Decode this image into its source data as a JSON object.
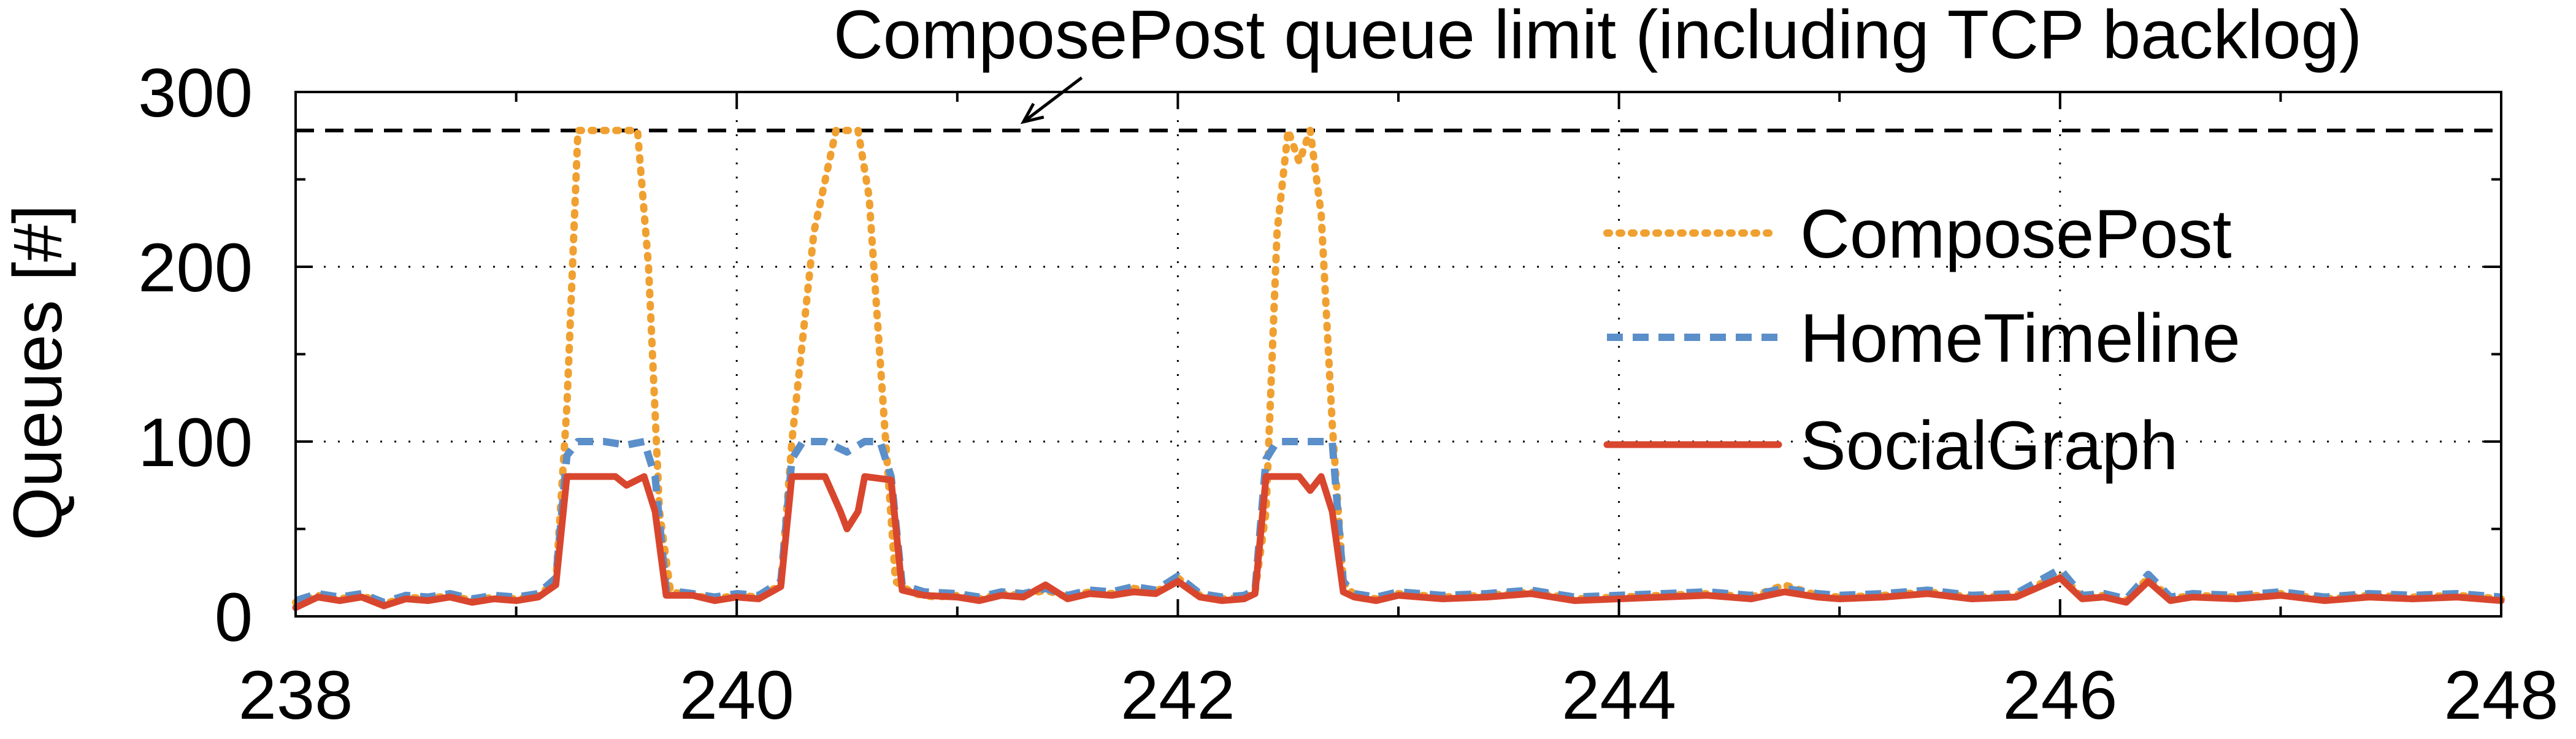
{
  "chart_data": {
    "type": "line",
    "title": "",
    "xlabel": "",
    "ylabel": "Queues [#]",
    "xlim": [
      238,
      248
    ],
    "ylim": [
      0,
      300
    ],
    "x_ticks": [
      238,
      240,
      242,
      244,
      246,
      248
    ],
    "x_tick_labels": [
      "238",
      "240",
      "242",
      "244",
      "246",
      "248"
    ],
    "y_ticks": [
      0,
      100,
      200,
      300
    ],
    "y_tick_labels": [
      "0",
      "100",
      "200",
      "300"
    ],
    "grid": true,
    "grid_style": "dotted",
    "legend_position": "right",
    "reference_line": {
      "value": 278,
      "style": "dashed",
      "color": "#000000"
    },
    "annotation": {
      "text": "ComposePost queue limit (including TCP backlog)",
      "points_to": {
        "x": 241.3,
        "y": 278
      }
    },
    "series": [
      {
        "name": "ComposePost",
        "style": "dotted",
        "color": "#F0A030",
        "points": [
          [
            238,
            8
          ],
          [
            238.1,
            12
          ],
          [
            238.2,
            10
          ],
          [
            238.3,
            12
          ],
          [
            238.4,
            7
          ],
          [
            238.5,
            11
          ],
          [
            238.6,
            10
          ],
          [
            238.7,
            12
          ],
          [
            238.8,
            9
          ],
          [
            238.9,
            11
          ],
          [
            239.0,
            10
          ],
          [
            239.1,
            12
          ],
          [
            239.18,
            20
          ],
          [
            239.23,
            120
          ],
          [
            239.28,
            278
          ],
          [
            239.45,
            278
          ],
          [
            239.55,
            278
          ],
          [
            239.6,
            200
          ],
          [
            239.65,
            60
          ],
          [
            239.7,
            14
          ],
          [
            239.8,
            12
          ],
          [
            239.9,
            10
          ],
          [
            240.0,
            12
          ],
          [
            240.1,
            11
          ],
          [
            240.2,
            18
          ],
          [
            240.25,
            100
          ],
          [
            240.35,
            220
          ],
          [
            240.45,
            278
          ],
          [
            240.55,
            278
          ],
          [
            240.6,
            240
          ],
          [
            240.67,
            110
          ],
          [
            240.72,
            20
          ],
          [
            240.8,
            13
          ],
          [
            240.9,
            11
          ],
          [
            241.0,
            12
          ],
          [
            241.1,
            10
          ],
          [
            241.2,
            13
          ],
          [
            241.3,
            12
          ],
          [
            241.4,
            15
          ],
          [
            241.5,
            11
          ],
          [
            241.6,
            14
          ],
          [
            241.7,
            13
          ],
          [
            241.8,
            16
          ],
          [
            241.9,
            14
          ],
          [
            242.0,
            22
          ],
          [
            242.1,
            12
          ],
          [
            242.2,
            10
          ],
          [
            242.3,
            11
          ],
          [
            242.35,
            14
          ],
          [
            242.4,
            60
          ],
          [
            242.45,
            220
          ],
          [
            242.5,
            278
          ],
          [
            242.55,
            260
          ],
          [
            242.6,
            278
          ],
          [
            242.65,
            230
          ],
          [
            242.7,
            110
          ],
          [
            242.75,
            20
          ],
          [
            242.8,
            12
          ],
          [
            242.9,
            10
          ],
          [
            243.0,
            13
          ],
          [
            243.2,
            11
          ],
          [
            243.4,
            12
          ],
          [
            243.6,
            14
          ],
          [
            243.8,
            10
          ],
          [
            244.0,
            11
          ],
          [
            244.2,
            12
          ],
          [
            244.4,
            13
          ],
          [
            244.6,
            11
          ],
          [
            244.75,
            18
          ],
          [
            244.9,
            12
          ],
          [
            245.0,
            11
          ],
          [
            245.2,
            12
          ],
          [
            245.4,
            14
          ],
          [
            245.6,
            11
          ],
          [
            245.8,
            12
          ],
          [
            246.0,
            24
          ],
          [
            246.1,
            11
          ],
          [
            246.2,
            12
          ],
          [
            246.3,
            9
          ],
          [
            246.4,
            22
          ],
          [
            246.5,
            10
          ],
          [
            246.6,
            12
          ],
          [
            246.8,
            11
          ],
          [
            247.0,
            13
          ],
          [
            247.2,
            10
          ],
          [
            247.4,
            12
          ],
          [
            247.6,
            11
          ],
          [
            247.8,
            12
          ],
          [
            248.0,
            10
          ]
        ]
      },
      {
        "name": "HomeTimeline",
        "style": "dashed",
        "color": "#5B8FC9",
        "points": [
          [
            238,
            9
          ],
          [
            238.1,
            13
          ],
          [
            238.2,
            11
          ],
          [
            238.3,
            13
          ],
          [
            238.4,
            8
          ],
          [
            238.5,
            12
          ],
          [
            238.6,
            11
          ],
          [
            238.7,
            13
          ],
          [
            238.8,
            10
          ],
          [
            238.9,
            12
          ],
          [
            239.0,
            11
          ],
          [
            239.1,
            13
          ],
          [
            239.18,
            22
          ],
          [
            239.23,
            92
          ],
          [
            239.28,
            100
          ],
          [
            239.4,
            100
          ],
          [
            239.5,
            98
          ],
          [
            239.58,
            100
          ],
          [
            239.63,
            80
          ],
          [
            239.68,
            15
          ],
          [
            239.8,
            13
          ],
          [
            239.9,
            11
          ],
          [
            240.0,
            13
          ],
          [
            240.1,
            12
          ],
          [
            240.2,
            20
          ],
          [
            240.25,
            90
          ],
          [
            240.3,
            100
          ],
          [
            240.4,
            100
          ],
          [
            240.5,
            94
          ],
          [
            240.58,
            100
          ],
          [
            240.65,
            100
          ],
          [
            240.7,
            80
          ],
          [
            240.75,
            18
          ],
          [
            240.85,
            14
          ],
          [
            241.0,
            13
          ],
          [
            241.1,
            11
          ],
          [
            241.2,
            14
          ],
          [
            241.3,
            13
          ],
          [
            241.4,
            16
          ],
          [
            241.5,
            12
          ],
          [
            241.6,
            15
          ],
          [
            241.7,
            14
          ],
          [
            241.8,
            17
          ],
          [
            241.9,
            15
          ],
          [
            242.0,
            23
          ],
          [
            242.1,
            13
          ],
          [
            242.2,
            11
          ],
          [
            242.3,
            12
          ],
          [
            242.35,
            15
          ],
          [
            242.4,
            90
          ],
          [
            242.45,
            100
          ],
          [
            242.6,
            100
          ],
          [
            242.7,
            100
          ],
          [
            242.75,
            20
          ],
          [
            242.8,
            13
          ],
          [
            242.9,
            11
          ],
          [
            243.0,
            14
          ],
          [
            243.2,
            12
          ],
          [
            243.4,
            13
          ],
          [
            243.6,
            15
          ],
          [
            243.8,
            11
          ],
          [
            244.0,
            12
          ],
          [
            244.2,
            13
          ],
          [
            244.4,
            14
          ],
          [
            244.6,
            12
          ],
          [
            244.75,
            16
          ],
          [
            244.9,
            13
          ],
          [
            245.0,
            12
          ],
          [
            245.2,
            13
          ],
          [
            245.4,
            15
          ],
          [
            245.6,
            12
          ],
          [
            245.8,
            13
          ],
          [
            246.0,
            27
          ],
          [
            246.1,
            12
          ],
          [
            246.2,
            13
          ],
          [
            246.3,
            10
          ],
          [
            246.4,
            24
          ],
          [
            246.5,
            11
          ],
          [
            246.6,
            13
          ],
          [
            246.8,
            12
          ],
          [
            247.0,
            14
          ],
          [
            247.2,
            11
          ],
          [
            247.4,
            13
          ],
          [
            247.6,
            12
          ],
          [
            247.8,
            13
          ],
          [
            248.0,
            11
          ]
        ]
      },
      {
        "name": "SocialGraph",
        "style": "solid",
        "color": "#D9462E",
        "points": [
          [
            238,
            5
          ],
          [
            238.1,
            11
          ],
          [
            238.2,
            9
          ],
          [
            238.3,
            11
          ],
          [
            238.4,
            6
          ],
          [
            238.5,
            10
          ],
          [
            238.6,
            9
          ],
          [
            238.7,
            11
          ],
          [
            238.8,
            8
          ],
          [
            238.9,
            10
          ],
          [
            239.0,
            9
          ],
          [
            239.1,
            11
          ],
          [
            239.18,
            18
          ],
          [
            239.23,
            80
          ],
          [
            239.45,
            80
          ],
          [
            239.5,
            75
          ],
          [
            239.58,
            80
          ],
          [
            239.63,
            60
          ],
          [
            239.68,
            12
          ],
          [
            239.8,
            12
          ],
          [
            239.9,
            9
          ],
          [
            240.0,
            11
          ],
          [
            240.1,
            10
          ],
          [
            240.2,
            17
          ],
          [
            240.25,
            80
          ],
          [
            240.4,
            80
          ],
          [
            240.47,
            60
          ],
          [
            240.5,
            50
          ],
          [
            240.55,
            60
          ],
          [
            240.58,
            80
          ],
          [
            240.7,
            78
          ],
          [
            240.75,
            15
          ],
          [
            240.85,
            12
          ],
          [
            241.0,
            11
          ],
          [
            241.1,
            9
          ],
          [
            241.2,
            12
          ],
          [
            241.3,
            11
          ],
          [
            241.4,
            18
          ],
          [
            241.5,
            10
          ],
          [
            241.6,
            13
          ],
          [
            241.7,
            12
          ],
          [
            241.8,
            14
          ],
          [
            241.9,
            13
          ],
          [
            242.0,
            20
          ],
          [
            242.1,
            11
          ],
          [
            242.2,
            9
          ],
          [
            242.3,
            10
          ],
          [
            242.35,
            13
          ],
          [
            242.4,
            80
          ],
          [
            242.55,
            80
          ],
          [
            242.6,
            72
          ],
          [
            242.65,
            80
          ],
          [
            242.7,
            60
          ],
          [
            242.75,
            14
          ],
          [
            242.8,
            11
          ],
          [
            242.9,
            9
          ],
          [
            243.0,
            12
          ],
          [
            243.2,
            10
          ],
          [
            243.4,
            11
          ],
          [
            243.6,
            13
          ],
          [
            243.8,
            9
          ],
          [
            244.0,
            10
          ],
          [
            244.2,
            11
          ],
          [
            244.4,
            12
          ],
          [
            244.6,
            10
          ],
          [
            244.75,
            14
          ],
          [
            244.9,
            11
          ],
          [
            245.0,
            10
          ],
          [
            245.2,
            11
          ],
          [
            245.4,
            13
          ],
          [
            245.6,
            10
          ],
          [
            245.8,
            11
          ],
          [
            246.0,
            22
          ],
          [
            246.1,
            10
          ],
          [
            246.2,
            11
          ],
          [
            246.3,
            8
          ],
          [
            246.4,
            20
          ],
          [
            246.5,
            9
          ],
          [
            246.6,
            11
          ],
          [
            246.8,
            10
          ],
          [
            247.0,
            12
          ],
          [
            247.2,
            9
          ],
          [
            247.4,
            11
          ],
          [
            247.6,
            10
          ],
          [
            247.8,
            11
          ],
          [
            248.0,
            9
          ]
        ]
      }
    ]
  }
}
